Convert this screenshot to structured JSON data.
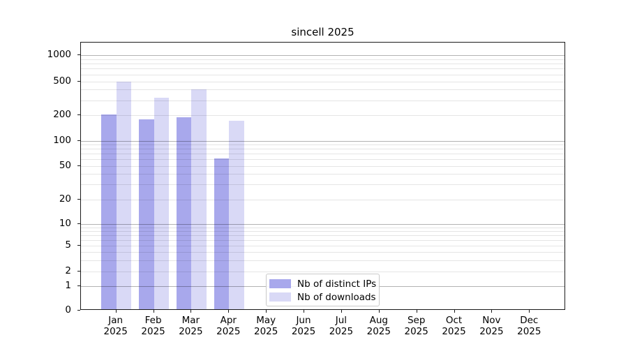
{
  "chart_data": {
    "type": "bar",
    "title": "sincell 2025",
    "x_axis": {
      "months": [
        "Jan",
        "Feb",
        "Mar",
        "Apr",
        "May",
        "Jun",
        "Jul",
        "Aug",
        "Sep",
        "Oct",
        "Nov",
        "Dec"
      ],
      "year": "2025"
    },
    "y_axis": {
      "scale": "log-like",
      "ticks": [
        0,
        1,
        2,
        5,
        10,
        20,
        50,
        100,
        200,
        500,
        1000
      ],
      "major_ticks": [
        1,
        10,
        100,
        1000
      ],
      "ylim": [
        0,
        1400
      ]
    },
    "grid": true,
    "series": [
      {
        "name": "Nb of distinct IPs",
        "color": "#a8a8ec",
        "values": [
          197,
          173,
          182,
          59,
          null,
          null,
          null,
          null,
          null,
          null,
          null,
          null
        ]
      },
      {
        "name": "Nb of downloads",
        "color": "#d9d9f6",
        "values": [
          475,
          310,
          390,
          166,
          null,
          null,
          null,
          null,
          null,
          null,
          null,
          null
        ]
      }
    ],
    "legend": {
      "position": "bottom-center",
      "items": [
        "Nb of distinct IPs",
        "Nb of downloads"
      ]
    }
  }
}
